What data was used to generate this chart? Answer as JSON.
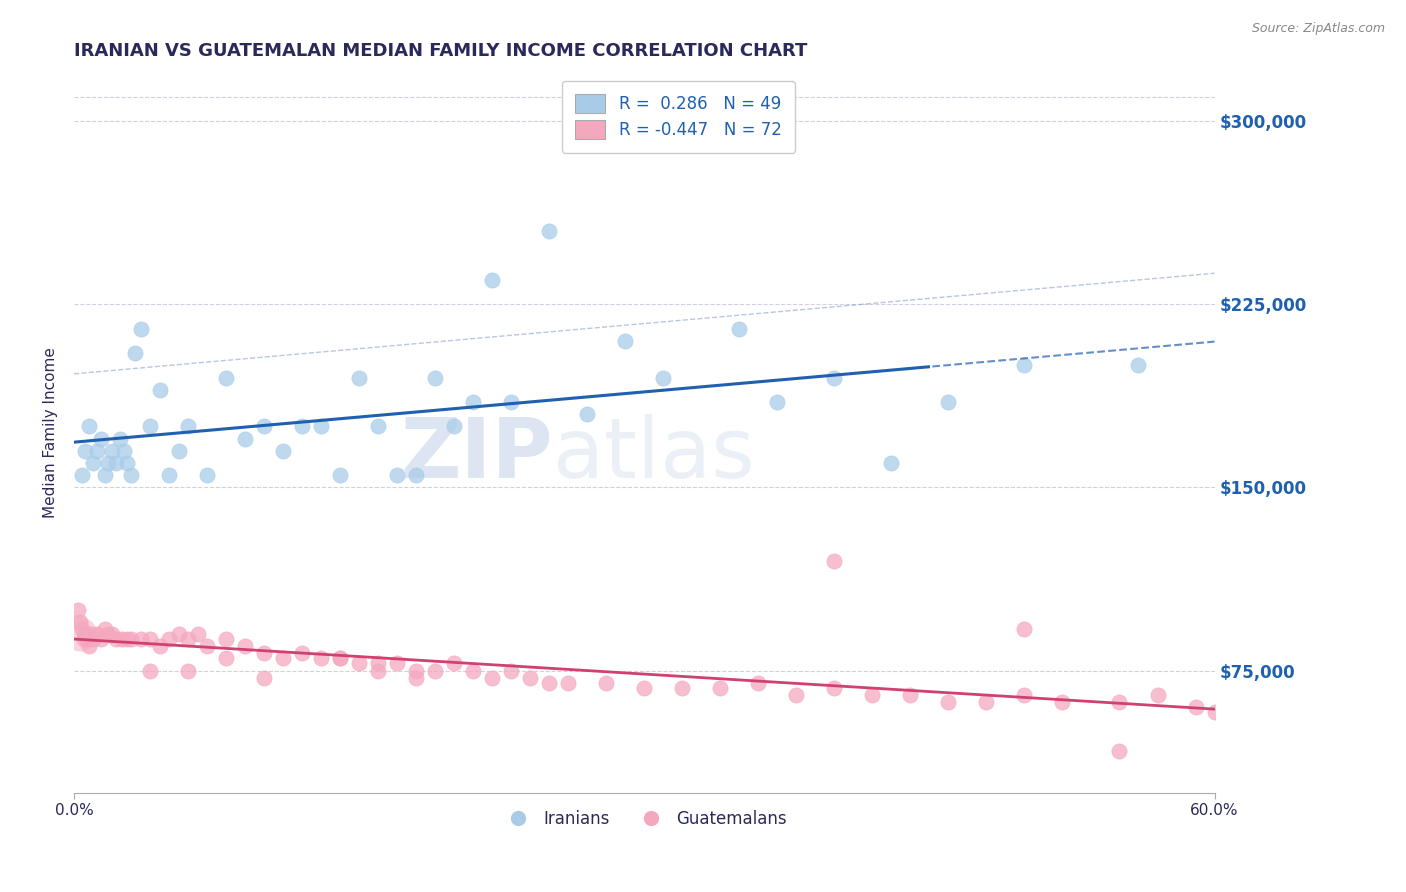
{
  "title": "IRANIAN VS GUATEMALAN MEDIAN FAMILY INCOME CORRELATION CHART",
  "source_text": "Source: ZipAtlas.com",
  "ylabel": "Median Family Income",
  "y_ticks": [
    75000,
    150000,
    225000,
    300000
  ],
  "y_tick_labels": [
    "$75,000",
    "$150,000",
    "$225,000",
    "$300,000"
  ],
  "x_min": 0.0,
  "x_max": 60.0,
  "y_min": 25000,
  "y_max": 320000,
  "watermark_zip": "ZIP",
  "watermark_atlas": "atlas",
  "legend_entry1": "R =  0.286   N = 49",
  "legend_entry2": "R = -0.447   N = 72",
  "legend_label1": "Iranians",
  "legend_label2": "Guatemalans",
  "color_iranian": "#a8cce8",
  "color_guatemalan": "#f4a8be",
  "trend_color_iranian": "#2060b0",
  "trend_color_guatemalan": "#d04070",
  "title_color": "#2a2a5a",
  "axis_color": "#2a2a5a",
  "ytick_color": "#2060b0",
  "grid_color": "#d0d0e0",
  "background_color": "#ffffff",
  "conf_color": "#7090c0",
  "iranian_x": [
    0.4,
    0.6,
    0.8,
    1.0,
    1.2,
    1.4,
    1.6,
    1.8,
    2.0,
    2.2,
    2.4,
    2.6,
    2.8,
    3.0,
    3.2,
    3.5,
    4.0,
    4.5,
    5.0,
    5.5,
    6.0,
    7.0,
    8.0,
    9.0,
    10.0,
    11.0,
    12.0,
    13.0,
    14.0,
    15.0,
    16.0,
    17.0,
    18.0,
    19.0,
    20.0,
    21.0,
    22.0,
    23.0,
    25.0,
    27.0,
    29.0,
    31.0,
    35.0,
    37.0,
    40.0,
    43.0,
    46.0,
    50.0,
    56.0
  ],
  "iranian_y": [
    155000,
    165000,
    175000,
    160000,
    165000,
    170000,
    155000,
    160000,
    165000,
    160000,
    170000,
    165000,
    160000,
    155000,
    205000,
    215000,
    175000,
    190000,
    155000,
    165000,
    175000,
    155000,
    195000,
    170000,
    175000,
    165000,
    175000,
    175000,
    155000,
    195000,
    175000,
    155000,
    155000,
    195000,
    175000,
    185000,
    235000,
    185000,
    255000,
    180000,
    210000,
    195000,
    215000,
    185000,
    195000,
    160000,
    185000,
    200000,
    200000
  ],
  "guatemalan_x": [
    0.2,
    0.3,
    0.4,
    0.5,
    0.6,
    0.7,
    0.8,
    0.9,
    1.0,
    1.2,
    1.4,
    1.6,
    1.8,
    2.0,
    2.2,
    2.5,
    2.8,
    3.0,
    3.5,
    4.0,
    4.5,
    5.0,
    5.5,
    6.0,
    6.5,
    7.0,
    8.0,
    9.0,
    10.0,
    11.0,
    12.0,
    13.0,
    14.0,
    15.0,
    16.0,
    17.0,
    18.0,
    19.0,
    20.0,
    21.0,
    22.0,
    23.0,
    24.0,
    25.0,
    26.0,
    28.0,
    30.0,
    32.0,
    34.0,
    36.0,
    38.0,
    40.0,
    42.0,
    44.0,
    46.0,
    48.0,
    50.0,
    52.0,
    55.0,
    57.0,
    59.0,
    60.0,
    4.0,
    6.0,
    8.0,
    10.0,
    14.0,
    16.0,
    18.0,
    40.0,
    50.0,
    55.0
  ],
  "guatemalan_y": [
    100000,
    95000,
    92000,
    88000,
    90000,
    88000,
    85000,
    90000,
    88000,
    90000,
    88000,
    92000,
    90000,
    90000,
    88000,
    88000,
    88000,
    88000,
    88000,
    88000,
    85000,
    88000,
    90000,
    88000,
    90000,
    85000,
    88000,
    85000,
    82000,
    80000,
    82000,
    80000,
    80000,
    78000,
    78000,
    78000,
    75000,
    75000,
    78000,
    75000,
    72000,
    75000,
    72000,
    70000,
    70000,
    70000,
    68000,
    68000,
    68000,
    70000,
    65000,
    68000,
    65000,
    65000,
    62000,
    62000,
    65000,
    62000,
    62000,
    65000,
    60000,
    58000,
    75000,
    75000,
    80000,
    72000,
    80000,
    75000,
    72000,
    120000,
    92000,
    42000
  ]
}
